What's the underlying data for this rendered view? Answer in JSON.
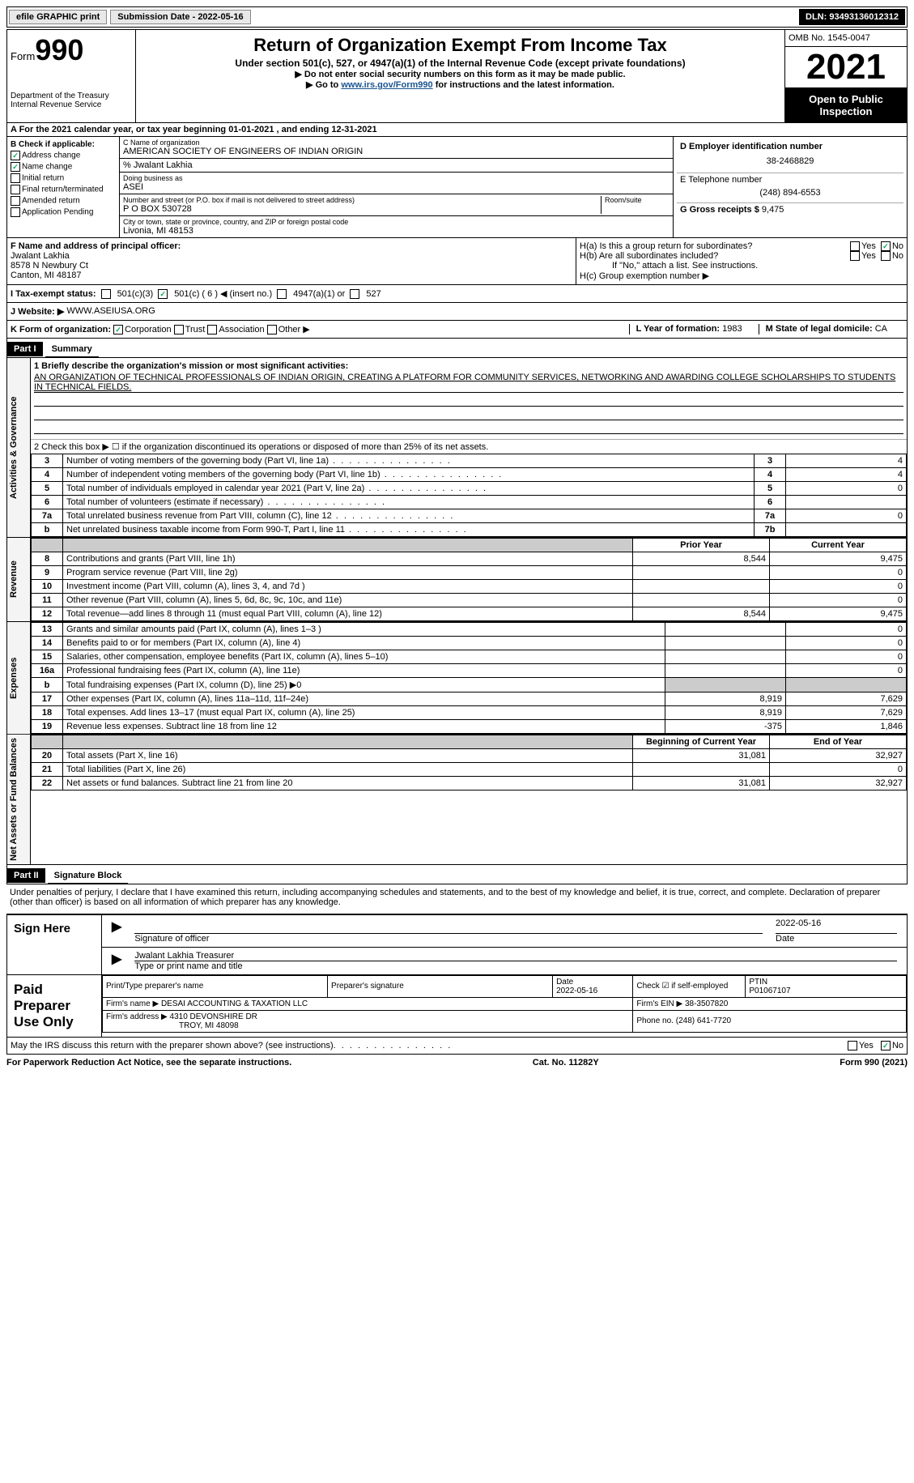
{
  "topbar": {
    "efile": "efile GRAPHIC print",
    "submission": "Submission Date - 2022-05-16",
    "dln": "DLN: 93493136012312"
  },
  "header": {
    "form": "Form",
    "form_num": "990",
    "title": "Return of Organization Exempt From Income Tax",
    "subtitle": "Under section 501(c), 527, or 4947(a)(1) of the Internal Revenue Code (except private foundations)",
    "note1": "▶ Do not enter social security numbers on this form as it may be made public.",
    "note2_pre": "▶ Go to ",
    "note2_link": "www.irs.gov/Form990",
    "note2_post": " for instructions and the latest information.",
    "dept": "Department of the Treasury",
    "irs": "Internal Revenue Service",
    "omb": "OMB No. 1545-0047",
    "year": "2021",
    "open": "Open to Public Inspection"
  },
  "a": {
    "text": "A For the 2021 calendar year, or tax year beginning 01-01-2021   , and ending 12-31-2021"
  },
  "b": {
    "label": "B Check if applicable:",
    "addr_change": "Address change",
    "name_change": "Name change",
    "initial": "Initial return",
    "final": "Final return/terminated",
    "amended": "Amended return",
    "pending": "Application Pending"
  },
  "c": {
    "name_lbl": "C Name of organization",
    "name": "AMERICAN SOCIETY OF ENGINEERS OF INDIAN ORIGIN",
    "care_lbl": "% Jwalant Lakhia",
    "dba_lbl": "Doing business as",
    "dba": "ASEI",
    "street_lbl": "Number and street (or P.O. box if mail is not delivered to street address)",
    "room_lbl": "Room/suite",
    "street": "P O BOX 530728",
    "city_lbl": "City or town, state or province, country, and ZIP or foreign postal code",
    "city": "Livonia, MI  48153"
  },
  "d": {
    "ein_lbl": "D Employer identification number",
    "ein": "38-2468829",
    "phone_lbl": "E Telephone number",
    "phone": "(248) 894-6553",
    "receipts_lbl": "G Gross receipts $ ",
    "receipts": "9,475"
  },
  "f": {
    "lbl": "F  Name and address of principal officer:",
    "name": "Jwalant Lakhia",
    "addr1": "8578 N Newbury Ct",
    "addr2": "Canton, MI  48187"
  },
  "h": {
    "ha": "H(a)  Is this a group return for subordinates?",
    "hb": "H(b)  Are all subordinates included?",
    "hb_note": "If \"No,\" attach a list. See instructions.",
    "hc": "H(c)  Group exemption number ▶",
    "yes": "Yes",
    "no": "No"
  },
  "i": {
    "lbl": "I   Tax-exempt status:",
    "c3": "501(c)(3)",
    "c6": "501(c) ( 6 ) ◀ (insert no.)",
    "a1": "4947(a)(1) or",
    "s527": "527"
  },
  "j": {
    "lbl": "J   Website: ▶",
    "val": "WWW.ASEIUSA.ORG"
  },
  "k": {
    "lbl": "K Form of organization:",
    "corp": "Corporation",
    "trust": "Trust",
    "assoc": "Association",
    "other": "Other ▶"
  },
  "l": {
    "lbl": "L Year of formation: ",
    "val": "1983"
  },
  "m": {
    "lbl": "M State of legal domicile: ",
    "val": "CA"
  },
  "part1": {
    "header": "Part I",
    "title": "Summary",
    "l1": "1  Briefly describe the organization's mission or most significant activities:",
    "mission": "AN ORGANIZATION OF TECHNICAL PROFESSIONALS OF INDIAN ORIGIN, CREATING A PLATFORM FOR COMMUNITY SERVICES, NETWORKING AND AWARDING COLLEGE SCHOLARSHIPS TO STUDENTS IN TECHNICAL FIELDS.",
    "l2": "2  Check this box ▶ ☐  if the organization discontinued its operations or disposed of more than 25% of its net assets.",
    "prior": "Prior Year",
    "current": "Current Year",
    "beg": "Beginning of Current Year",
    "end": "End of Year"
  },
  "gov_lines": [
    {
      "n": "3",
      "t": "Number of voting members of the governing body (Part VI, line 1a)",
      "box": "3",
      "v": "4"
    },
    {
      "n": "4",
      "t": "Number of independent voting members of the governing body (Part VI, line 1b)",
      "box": "4",
      "v": "4"
    },
    {
      "n": "5",
      "t": "Total number of individuals employed in calendar year 2021 (Part V, line 2a)",
      "box": "5",
      "v": "0"
    },
    {
      "n": "6",
      "t": "Total number of volunteers (estimate if necessary)",
      "box": "6",
      "v": ""
    },
    {
      "n": "7a",
      "t": "Total unrelated business revenue from Part VIII, column (C), line 12",
      "box": "7a",
      "v": "0"
    },
    {
      "n": "b",
      "t": "Net unrelated business taxable income from Form 990-T, Part I, line 11",
      "box": "7b",
      "v": ""
    }
  ],
  "rev_lines": [
    {
      "n": "8",
      "t": "Contributions and grants (Part VIII, line 1h)",
      "p": "8,544",
      "c": "9,475"
    },
    {
      "n": "9",
      "t": "Program service revenue (Part VIII, line 2g)",
      "p": "",
      "c": "0"
    },
    {
      "n": "10",
      "t": "Investment income (Part VIII, column (A), lines 3, 4, and 7d )",
      "p": "",
      "c": "0"
    },
    {
      "n": "11",
      "t": "Other revenue (Part VIII, column (A), lines 5, 6d, 8c, 9c, 10c, and 11e)",
      "p": "",
      "c": "0"
    },
    {
      "n": "12",
      "t": "Total revenue—add lines 8 through 11 (must equal Part VIII, column (A), line 12)",
      "p": "8,544",
      "c": "9,475"
    }
  ],
  "exp_lines": [
    {
      "n": "13",
      "t": "Grants and similar amounts paid (Part IX, column (A), lines 1–3 )",
      "p": "",
      "c": "0"
    },
    {
      "n": "14",
      "t": "Benefits paid to or for members (Part IX, column (A), line 4)",
      "p": "",
      "c": "0"
    },
    {
      "n": "15",
      "t": "Salaries, other compensation, employee benefits (Part IX, column (A), lines 5–10)",
      "p": "",
      "c": "0"
    },
    {
      "n": "16a",
      "t": "Professional fundraising fees (Part IX, column (A), line 11e)",
      "p": "",
      "c": "0"
    },
    {
      "n": "b",
      "t": "Total fundraising expenses (Part IX, column (D), line 25) ▶0",
      "p": "shade",
      "c": "shade"
    },
    {
      "n": "17",
      "t": "Other expenses (Part IX, column (A), lines 11a–11d, 11f–24e)",
      "p": "8,919",
      "c": "7,629"
    },
    {
      "n": "18",
      "t": "Total expenses. Add lines 13–17 (must equal Part IX, column (A), line 25)",
      "p": "8,919",
      "c": "7,629"
    },
    {
      "n": "19",
      "t": "Revenue less expenses. Subtract line 18 from line 12",
      "p": "-375",
      "c": "1,846"
    }
  ],
  "net_lines": [
    {
      "n": "20",
      "t": "Total assets (Part X, line 16)",
      "p": "31,081",
      "c": "32,927"
    },
    {
      "n": "21",
      "t": "Total liabilities (Part X, line 26)",
      "p": "",
      "c": "0"
    },
    {
      "n": "22",
      "t": "Net assets or fund balances. Subtract line 21 from line 20",
      "p": "31,081",
      "c": "32,927"
    }
  ],
  "vert": {
    "gov": "Activities & Governance",
    "rev": "Revenue",
    "exp": "Expenses",
    "net": "Net Assets or Fund Balances"
  },
  "part2": {
    "header": "Part II",
    "title": "Signature Block",
    "decl": "Under penalties of perjury, I declare that I have examined this return, including accompanying schedules and statements, and to the best of my knowledge and belief, it is true, correct, and complete. Declaration of preparer (other than officer) is based on all information of which preparer has any knowledge."
  },
  "sign": {
    "here": "Sign Here",
    "sig_officer": "Signature of officer",
    "date": "Date",
    "date_val": "2022-05-16",
    "name_title": "Jwalant Lakhia  Treasurer",
    "name_lbl": "Type or print name and title"
  },
  "prep": {
    "title": "Paid Preparer Use Only",
    "print_lbl": "Print/Type preparer's name",
    "sig_lbl": "Preparer's signature",
    "date_lbl": "Date",
    "date_val": "2022-05-16",
    "check_lbl": "Check ☑ if self-employed",
    "ptin_lbl": "PTIN",
    "ptin": "P01067107",
    "firm_lbl": "Firm's name   ▶",
    "firm": "DESAI ACCOUNTING & TAXATION LLC",
    "ein_lbl": "Firm's EIN ▶",
    "ein": "38-3507820",
    "addr_lbl": "Firm's address ▶",
    "addr1": "4310 DEVONSHIRE DR",
    "addr2": "TROY, MI  48098",
    "phone_lbl": "Phone no. ",
    "phone": "(248) 641-7720"
  },
  "may": {
    "q": "May the IRS discuss this return with the preparer shown above? (see instructions)",
    "yes": "Yes",
    "no": "No"
  },
  "footer": {
    "left": "For Paperwork Reduction Act Notice, see the separate instructions.",
    "mid": "Cat. No. 11282Y",
    "right": "Form 990 (2021)"
  }
}
